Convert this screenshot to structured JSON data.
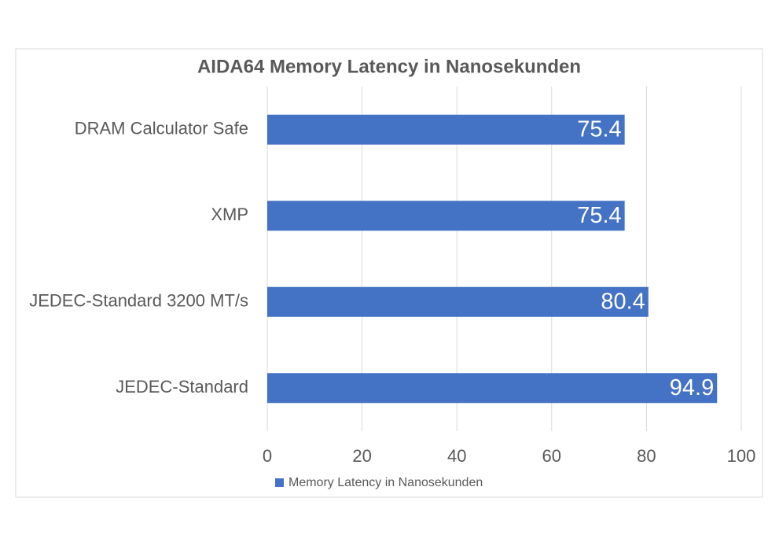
{
  "chart_data": {
    "type": "barh",
    "title": "AIDA64 Memory Latency in Nanosekunden",
    "categories": [
      "DRAM Calculator Safe",
      "XMP",
      "JEDEC-Standard 3200 MT/s",
      "JEDEC-Standard"
    ],
    "series": [
      {
        "name": "Memory Latency in Nanosekunden",
        "color": "#4472c4",
        "values": [
          75.4,
          75.4,
          80.4,
          94.9
        ]
      }
    ],
    "xlim": [
      0,
      100
    ],
    "xticks": [
      0,
      20,
      40,
      60,
      80,
      100
    ],
    "grid": true,
    "data_labels": true,
    "legend": "bottom"
  }
}
